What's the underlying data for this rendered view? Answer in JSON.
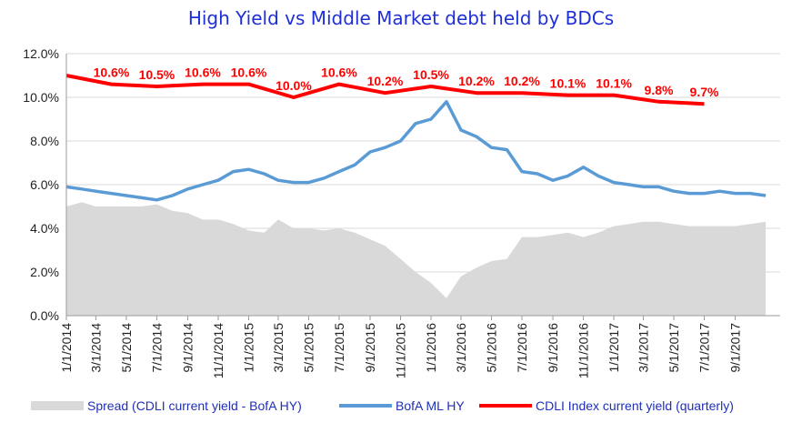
{
  "chart_data": {
    "type": "line",
    "title": "High Yield  vs  Middle Market debt held by BDCs",
    "xlabel": "",
    "ylabel": "",
    "x_start": "1/1/2014",
    "x_end": "11/30/2017",
    "ylim": [
      0,
      12
    ],
    "y_ticks": [
      "0.0%",
      "2.0%",
      "4.0%",
      "6.0%",
      "8.0%",
      "10.0%",
      "12.0%"
    ],
    "x_ticks": [
      "1/1/2014",
      "3/1/2014",
      "5/1/2014",
      "7/1/2014",
      "9/1/2014",
      "11/1/2014",
      "1/1/2015",
      "3/1/2015",
      "5/1/2015",
      "7/1/2015",
      "9/1/2015",
      "11/1/2015",
      "1/1/2016",
      "3/1/2016",
      "5/1/2016",
      "7/1/2016",
      "9/1/2016",
      "11/1/2016",
      "1/1/2017",
      "3/1/2017",
      "5/1/2017",
      "7/1/2017",
      "9/1/2017"
    ],
    "grid": true,
    "legend_position": "bottom",
    "series": [
      {
        "name": "Spread (CDLI current yield - BofA HY)",
        "kind": "area",
        "color": "#d9d9d9",
        "x": [
          "1/1/2014",
          "2/1/2014",
          "3/1/2014",
          "4/1/2014",
          "5/1/2014",
          "6/1/2014",
          "7/1/2014",
          "8/1/2014",
          "9/1/2014",
          "10/1/2014",
          "11/1/2014",
          "12/1/2014",
          "1/1/2015",
          "2/1/2015",
          "3/1/2015",
          "4/1/2015",
          "5/1/2015",
          "6/1/2015",
          "7/1/2015",
          "8/1/2015",
          "9/1/2015",
          "10/1/2015",
          "11/1/2015",
          "12/1/2015",
          "1/1/2016",
          "2/1/2016",
          "3/1/2016",
          "4/1/2016",
          "5/1/2016",
          "6/1/2016",
          "7/1/2016",
          "8/1/2016",
          "9/1/2016",
          "10/1/2016",
          "11/1/2016",
          "12/1/2016",
          "1/1/2017",
          "2/1/2017",
          "3/1/2017",
          "4/1/2017",
          "5/1/2017",
          "6/1/2017",
          "7/1/2017",
          "8/1/2017",
          "9/1/2017",
          "10/1/2017",
          "11/1/2017"
        ],
        "values": [
          5.0,
          5.2,
          5.0,
          5.0,
          5.0,
          5.0,
          5.1,
          4.8,
          4.7,
          4.4,
          4.4,
          4.2,
          3.9,
          3.8,
          4.4,
          4.0,
          4.0,
          3.9,
          4.0,
          3.8,
          3.5,
          3.2,
          2.6,
          2.0,
          1.5,
          0.8,
          1.8,
          2.2,
          2.5,
          2.6,
          3.6,
          3.6,
          3.7,
          3.8,
          3.6,
          3.8,
          4.1,
          4.2,
          4.3,
          4.3,
          4.2,
          4.1,
          4.1,
          4.1,
          4.1,
          4.2,
          4.3
        ]
      },
      {
        "name": "BofA ML HY",
        "kind": "line",
        "color": "#5b9bd5",
        "x": [
          "1/1/2014",
          "2/1/2014",
          "3/1/2014",
          "4/1/2014",
          "5/1/2014",
          "6/1/2014",
          "7/1/2014",
          "8/1/2014",
          "9/1/2014",
          "10/1/2014",
          "11/1/2014",
          "12/1/2014",
          "1/1/2015",
          "2/1/2015",
          "3/1/2015",
          "4/1/2015",
          "5/1/2015",
          "6/1/2015",
          "7/1/2015",
          "8/1/2015",
          "9/1/2015",
          "10/1/2015",
          "11/1/2015",
          "12/1/2015",
          "1/1/2016",
          "2/1/2016",
          "3/1/2016",
          "4/1/2016",
          "5/1/2016",
          "6/1/2016",
          "7/1/2016",
          "8/1/2016",
          "9/1/2016",
          "10/1/2016",
          "11/1/2016",
          "12/1/2016",
          "1/1/2017",
          "2/1/2017",
          "3/1/2017",
          "4/1/2017",
          "5/1/2017",
          "6/1/2017",
          "7/1/2017",
          "8/1/2017",
          "9/1/2017",
          "10/1/2017",
          "11/1/2017"
        ],
        "values": [
          5.9,
          5.8,
          5.7,
          5.6,
          5.5,
          5.4,
          5.3,
          5.5,
          5.8,
          6.0,
          6.2,
          6.6,
          6.7,
          6.5,
          6.2,
          6.1,
          6.1,
          6.3,
          6.6,
          6.9,
          7.5,
          7.7,
          8.0,
          8.8,
          9.0,
          9.8,
          8.5,
          8.2,
          7.7,
          7.6,
          6.6,
          6.5,
          6.2,
          6.4,
          6.8,
          6.4,
          6.1,
          6.0,
          5.9,
          5.9,
          5.7,
          5.6,
          5.6,
          5.7,
          5.6,
          5.6,
          5.5
        ]
      },
      {
        "name": "CDLI Index current yield (quarterly)",
        "kind": "line",
        "color": "#ff0000",
        "x": [
          "1/1/2014",
          "4/1/2014",
          "7/1/2014",
          "10/1/2014",
          "1/1/2015",
          "4/1/2015",
          "7/1/2015",
          "10/1/2015",
          "1/1/2016",
          "4/1/2016",
          "7/1/2016",
          "10/1/2016",
          "1/1/2017",
          "4/1/2017",
          "7/1/2017"
        ],
        "values": [
          11.0,
          10.6,
          10.5,
          10.6,
          10.6,
          10.0,
          10.6,
          10.2,
          10.5,
          10.2,
          10.2,
          10.1,
          10.1,
          9.8,
          9.7
        ],
        "labels": [
          "",
          "10.6%",
          "10.5%",
          "10.6%",
          "10.6%",
          "10.0%",
          "10.6%",
          "10.2%",
          "10.5%",
          "10.2%",
          "10.2%",
          "10.1%",
          "10.1%",
          "9.8%",
          "9.7%"
        ]
      }
    ]
  }
}
